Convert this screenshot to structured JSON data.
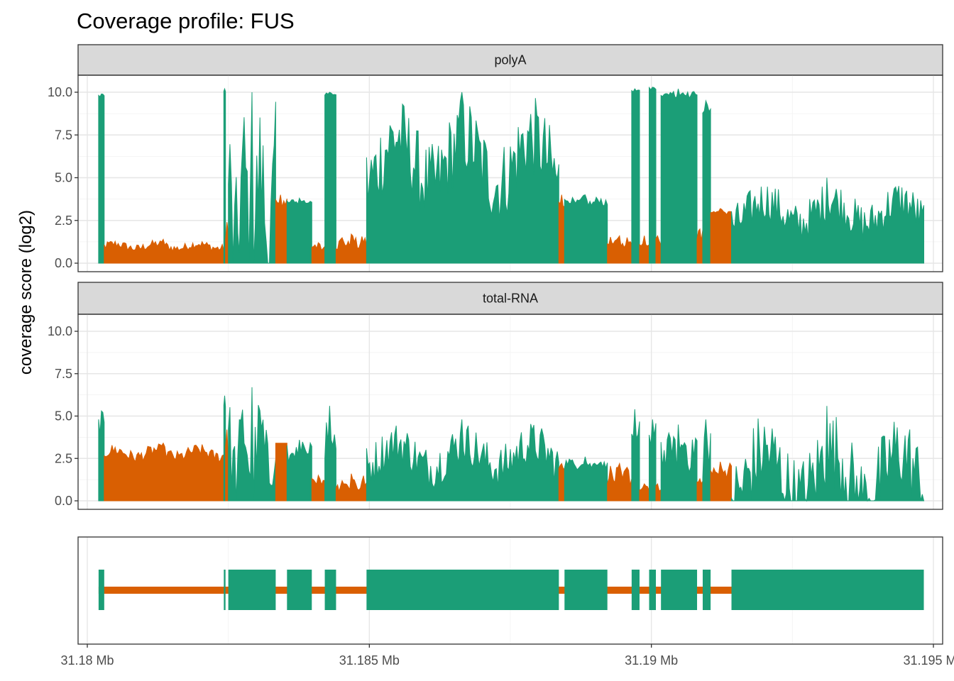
{
  "title": "Coverage profile: FUS",
  "ylabel": "coverage score (log2)",
  "colors": {
    "exon": "#1b9e77",
    "intron": "#d95f02",
    "strip_bg": "#d9d9d9"
  },
  "chart_data": {
    "type": "area",
    "title": "Coverage profile: FUS",
    "ylabel": "coverage score (log2)",
    "x_unit": "Mb",
    "xlim": [
      31.18,
      31.195
    ],
    "x_ticks": [
      31.18,
      31.185,
      31.19,
      31.195
    ],
    "x_tick_labels": [
      "31.18 Mb",
      "31.185 Mb",
      "31.19 Mb",
      "31.195 Mb"
    ],
    "ylim": [
      0,
      11
    ],
    "y_ticks": [
      0,
      2.5,
      5,
      7.5,
      10
    ],
    "y_tick_labels": [
      "0.0",
      "2.5",
      "5.0",
      "7.5",
      "10.0"
    ],
    "grid": true,
    "legend": "none",
    "exons": [
      [
        31.1802,
        31.1803
      ],
      [
        31.18242,
        31.18245
      ],
      [
        31.1825,
        31.18334
      ],
      [
        31.18354,
        31.18398
      ],
      [
        31.18421,
        31.18441
      ],
      [
        31.18495,
        31.18836
      ],
      [
        31.18846,
        31.18922
      ],
      [
        31.18965,
        31.18979
      ],
      [
        31.18996,
        31.19008
      ],
      [
        31.19017,
        31.19081
      ],
      [
        31.19091,
        31.19105
      ],
      [
        31.19142,
        31.19483
      ]
    ],
    "facets": [
      {
        "name": "polyA",
        "exon_levels": [
          9.8,
          10,
          3.3,
          3.6,
          9.9,
          6.0,
          3.6,
          10.1,
          10.2,
          9.9,
          9.0,
          3.0
        ],
        "exon_peaks": [
          9.9,
          10.2,
          10.0,
          3.8,
          10.0,
          10.0,
          4.0,
          10.2,
          10.3,
          10.2,
          9.5,
          5.0
        ],
        "intron_levels": [
          1.0,
          1.6,
          3.5,
          0.9,
          1.2,
          3.6,
          1.2,
          1.2,
          1.2,
          1.5,
          3.0
        ],
        "intron_peaks": [
          1.4,
          2.4,
          4.0,
          1.2,
          1.7,
          4.0,
          1.6,
          1.6,
          1.6,
          2.0,
          3.2
        ]
      },
      {
        "name": "total-RNA",
        "exon_levels": [
          4.6,
          5.5,
          2.9,
          2.8,
          3.8,
          2.7,
          2.2,
          4.0,
          3.5,
          3.0,
          2.8,
          1.6
        ],
        "exon_peaks": [
          5.3,
          6.2,
          6.7,
          3.6,
          5.6,
          4.8,
          2.6,
          5.4,
          4.8,
          4.5,
          4.8,
          5.6
        ],
        "intron_levels": [
          2.8,
          2.9,
          3.4,
          1.2,
          1.0,
          2.0,
          1.5,
          0.7,
          0.6,
          1.0,
          1.8
        ],
        "intron_peaks": [
          3.4,
          4.2,
          3.4,
          1.5,
          1.6,
          2.2,
          2.2,
          1.0,
          1.0,
          1.3,
          2.3
        ]
      }
    ]
  }
}
